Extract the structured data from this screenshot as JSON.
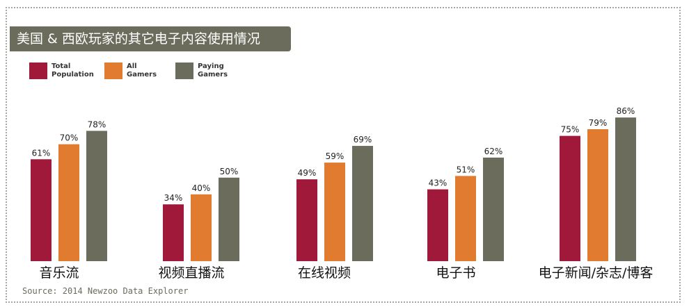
{
  "title": "美国 & 西欧玩家的其它电子内容使用情况",
  "source": "Source: 2014 Newzoo Data Explorer",
  "colors": {
    "total_population": "#a0183a",
    "all_gamers": "#e07b30",
    "paying_gamers": "#6b6c5c",
    "title_bg": "#6b6c5c"
  },
  "chart_data": {
    "type": "bar",
    "categories": [
      "音乐流",
      "视频直播流",
      "在线视频",
      "电子书",
      "电子新闻/杂志/博客"
    ],
    "series": [
      {
        "name": "Total Population",
        "values": [
          61,
          34,
          49,
          43,
          75
        ],
        "labels": [
          "61%",
          "34%",
          "49%",
          "43%",
          "75%"
        ]
      },
      {
        "name": "All Gamers",
        "values": [
          70,
          40,
          59,
          51,
          79
        ],
        "labels": [
          "70%",
          "40%",
          "59%",
          "51%",
          "79%"
        ]
      },
      {
        "name": "Paying Gamers",
        "values": [
          78,
          50,
          69,
          62,
          86
        ],
        "labels": [
          "78%",
          "50%",
          "69%",
          "62%",
          "86%"
        ]
      }
    ],
    "title": "美国 & 西欧玩家的其它电子内容使用情况",
    "xlabel": "",
    "ylabel": "",
    "ylim": [
      0,
      100
    ],
    "grid": false,
    "legend": "top-left"
  }
}
